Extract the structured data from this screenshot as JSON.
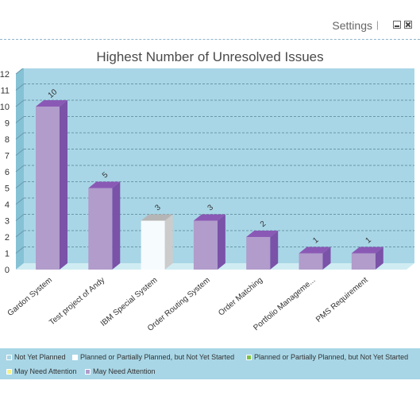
{
  "widget": {
    "settings_label": "Settings",
    "separator": "|"
  },
  "colors": {
    "plot_bg": "#a8d6e6",
    "bar_purple": "#b19ccb",
    "bar_purple_top": "#8a59b5",
    "bar_purple_side": "#7a52a8",
    "bar_white": "#f6fbfd",
    "bar_white_side": "#cccccc",
    "bar_white_top": "#b5b5b5",
    "legend_bg": "#a8d6e6"
  },
  "chart_data": {
    "type": "bar",
    "title": "Highest Number of Unresolved Issues",
    "xlabel": "",
    "ylabel": "",
    "ylim": [
      0,
      12
    ],
    "yticks": [
      0,
      1,
      2,
      3,
      4,
      5,
      6,
      7,
      8,
      9,
      10,
      11,
      12
    ],
    "grid": true,
    "categories": [
      "Gardon System",
      "Test project of Andy",
      "IBM Special System",
      "Order Routing System",
      "Order Matching",
      "Portfolio Manageme...",
      "PMS Requirement"
    ],
    "values": [
      10,
      5,
      3,
      3,
      2,
      1,
      1
    ],
    "bar_colors": [
      "#b19ccb",
      "#b19ccb",
      "#f6fbfd",
      "#b19ccb",
      "#b19ccb",
      "#b19ccb",
      "#b19ccb"
    ],
    "data_labels": [
      "10",
      "5",
      "3",
      "3",
      "2",
      "1",
      "1"
    ]
  },
  "legend": {
    "items": [
      {
        "label": "Not Yet Planned",
        "color": "#a8d6e6"
      },
      {
        "label": "Planned or Partially Planned, but Not Yet Started",
        "color": "#ffffff"
      },
      {
        "label": "Planned or Partially Planned, but Not Yet Started",
        "color": "#7dc243"
      },
      {
        "label": "May Need Attention",
        "color": "#f3f28a"
      },
      {
        "label": "May Need Attention",
        "color": "#b19ccb"
      }
    ]
  }
}
